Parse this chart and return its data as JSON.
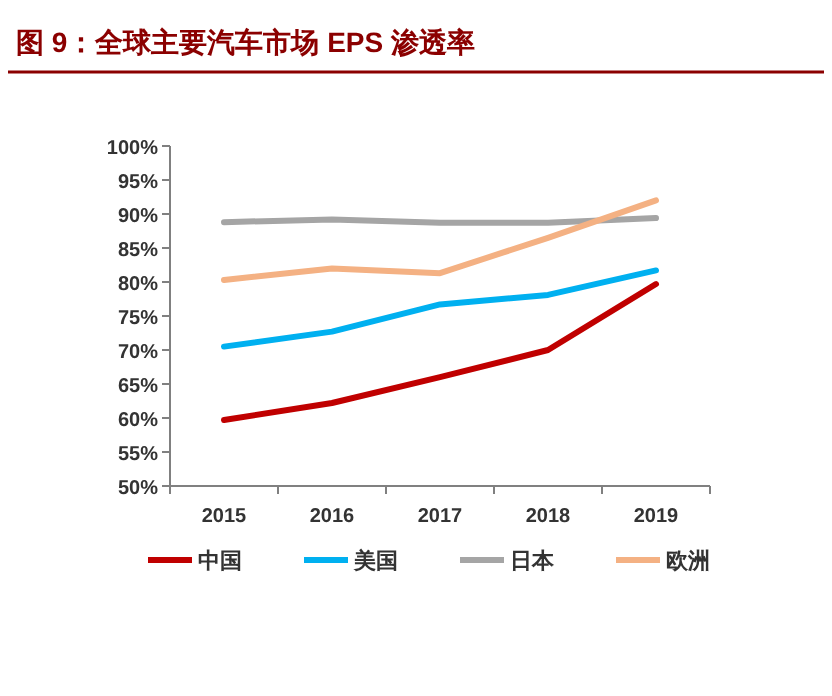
{
  "chart_data": {
    "type": "line",
    "title": "图 9：全球主要汽车市场 EPS 渗透率",
    "categories": [
      "2015",
      "2016",
      "2017",
      "2018",
      "2019"
    ],
    "series": [
      {
        "name": "中国",
        "color": "#c00000",
        "values": [
          59.7,
          62.2,
          66.0,
          70.0,
          79.7
        ]
      },
      {
        "name": "美国",
        "color": "#00b0f0",
        "values": [
          70.5,
          72.7,
          76.7,
          78.1,
          81.7
        ]
      },
      {
        "name": "日本",
        "color": "#a5a5a5",
        "values": [
          88.8,
          89.2,
          88.7,
          88.7,
          89.4
        ]
      },
      {
        "name": "欧洲",
        "color": "#f4b183",
        "values": [
          80.3,
          82.0,
          81.3,
          86.5,
          92.0
        ]
      }
    ],
    "ylim": [
      50,
      100
    ],
    "yticks": [
      {
        "value": 50,
        "label": "50%"
      },
      {
        "value": 55,
        "label": "55%"
      },
      {
        "value": 60,
        "label": "60%"
      },
      {
        "value": 65,
        "label": "65%"
      },
      {
        "value": 70,
        "label": "70%"
      },
      {
        "value": 75,
        "label": "75%"
      },
      {
        "value": 80,
        "label": "80%"
      },
      {
        "value": 85,
        "label": "85%"
      },
      {
        "value": 90,
        "label": "90%"
      },
      {
        "value": 95,
        "label": "95%"
      },
      {
        "value": 100,
        "label": "100%"
      }
    ],
    "legend": "bottom",
    "grid": false
  }
}
